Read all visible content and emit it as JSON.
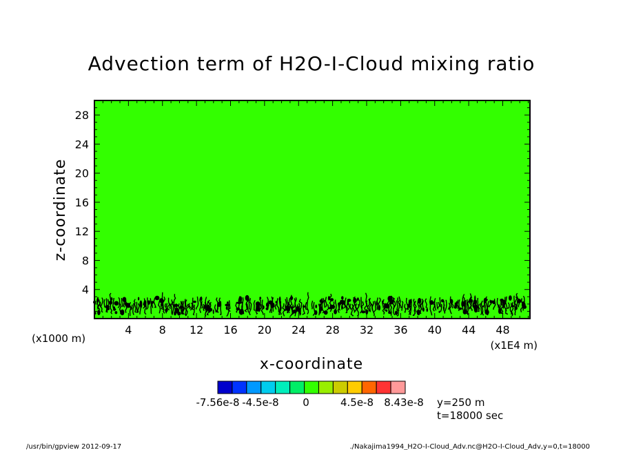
{
  "chart_data": {
    "type": "heatmap",
    "title": "Advection term of H2O-I-Cloud mixing ratio",
    "xlabel": "x-coordinate",
    "ylabel": "z-coordinate",
    "x_unit_left": "(x1000 m)",
    "x_unit_right": "(x1E4 m)",
    "xlim": [
      0,
      51.2
    ],
    "ylim": [
      0,
      30
    ],
    "x_ticks": [
      4,
      8,
      12,
      16,
      20,
      24,
      28,
      32,
      36,
      40,
      44,
      48
    ],
    "y_ticks": [
      4,
      8,
      12,
      16,
      20,
      24,
      28
    ],
    "x_tick_labels": [
      "4",
      "8",
      "12",
      "16",
      "20",
      "24",
      "28",
      "32",
      "36",
      "40",
      "44",
      "48"
    ],
    "y_tick_labels": [
      "4",
      "8",
      "12",
      "16",
      "20",
      "24",
      "28"
    ],
    "background_value": 0,
    "background_color": "#33ff00",
    "cloud_layer": {
      "z_min": 0.3,
      "z_max": 4.0,
      "x_min": 0.0,
      "x_max": 51.2,
      "contour_color": "#000000"
    },
    "colorbar": {
      "colors": [
        "#0000cc",
        "#0033ff",
        "#0099ff",
        "#00ccee",
        "#00eebb",
        "#00ee66",
        "#33ff00",
        "#99ee00",
        "#cccc00",
        "#ffcc00",
        "#ff6600",
        "#ff3333",
        "#ff9999"
      ],
      "labels": [
        "-7.56e-8",
        "-4.5e-8",
        "0",
        "4.5e-8",
        "8.43e-8"
      ],
      "label_values": [
        -7.56e-08,
        -4.5e-08,
        0,
        4.5e-08,
        8.43e-08
      ]
    },
    "annotations": {
      "y_pos": "y=250  m",
      "time": "t=18000  sec"
    }
  },
  "footer": {
    "left": "/usr/bin/gpview   2012-09-17",
    "right": "./Nakajima1994_H2O-I-Cloud_Adv.nc@H2O-I-Cloud_Adv,y=0,t=18000"
  }
}
